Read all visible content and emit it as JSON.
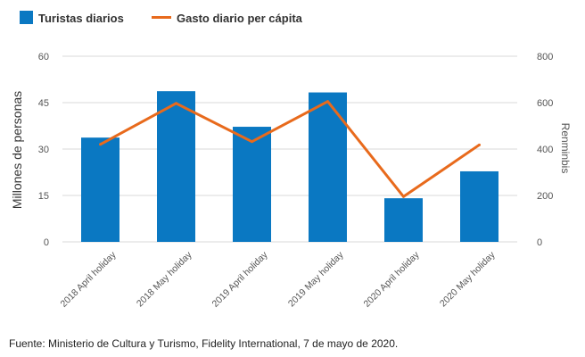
{
  "chart_data": {
    "type": "bar+line",
    "categories": [
      "2018 April holiday",
      "2018 May holiday",
      "2019 April holiday",
      "2019 May holiday",
      "2020 April holiday",
      "2020 May holiday"
    ],
    "series": [
      {
        "name": "Turistas diarios",
        "type": "bar",
        "axis": "left",
        "values": [
          33.7,
          48.7,
          37.2,
          48.3,
          14.1,
          22.8
        ]
      },
      {
        "name": "Gasto diario per cápita",
        "type": "line",
        "axis": "right",
        "values": [
          420,
          597,
          432,
          605,
          195,
          418
        ]
      }
    ],
    "ylabel": "Millones de personas",
    "ylabel_right": "Renminbis",
    "ylim": [
      0,
      60
    ],
    "yticks": [
      0,
      15,
      30,
      45,
      60
    ],
    "ylim_right": [
      0,
      800
    ],
    "yticks_right": [
      0,
      200,
      400,
      600,
      800
    ],
    "grid": true,
    "legend_position": "top-left",
    "colors": {
      "bar": "#0a78c2",
      "line": "#e86a1c"
    }
  },
  "source_note": "Fuente: Ministerio de Cultura y Turismo, Fidelity International, 7 de mayo de 2020."
}
